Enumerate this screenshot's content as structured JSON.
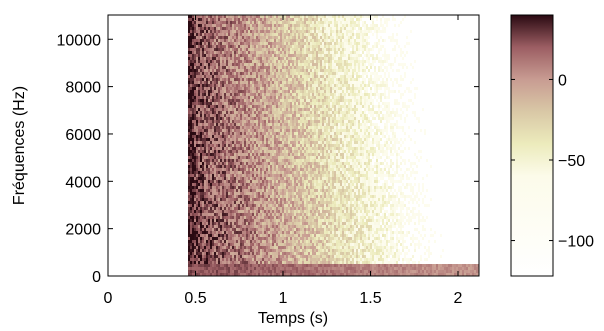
{
  "chart_data": {
    "type": "heatmap",
    "title": "",
    "xlabel": "Temps (s)",
    "ylabel": "Fréquences (Hz)",
    "xlim": [
      0,
      2.12
    ],
    "ylim": [
      0,
      11025
    ],
    "xticks": [
      0,
      0.5,
      1,
      1.5,
      2
    ],
    "xticklabels": [
      "0",
      "0.5",
      "1",
      "1.5",
      "2"
    ],
    "yticks": [
      0,
      2000,
      4000,
      6000,
      8000,
      10000
    ],
    "yticklabels": [
      "0",
      "2000",
      "4000",
      "6000",
      "8000",
      "10000"
    ],
    "onset_time": 0.46,
    "description_of_field": "power in dB; silence before onset, broadband energy decaying with time and frequency, strong low-frequency band near 200 Hz persisting to ~2.1 s",
    "colorbar": {
      "range": [
        -122,
        40
      ],
      "ticks": [
        0,
        -50,
        -100
      ],
      "ticklabels": [
        "0",
        "−50",
        "−100"
      ],
      "colormap_stops": [
        {
          "value": -122,
          "color": "#ffffff"
        },
        {
          "value": -60,
          "color": "#fcfbea"
        },
        {
          "value": -40,
          "color": "#ecebbc"
        },
        {
          "value": -20,
          "color": "#d9c8a6"
        },
        {
          "value": 0,
          "color": "#c89c92"
        },
        {
          "value": 20,
          "color": "#9c5e63"
        },
        {
          "value": 40,
          "color": "#2a0a12"
        }
      ]
    },
    "grid": false,
    "legend": "none"
  }
}
